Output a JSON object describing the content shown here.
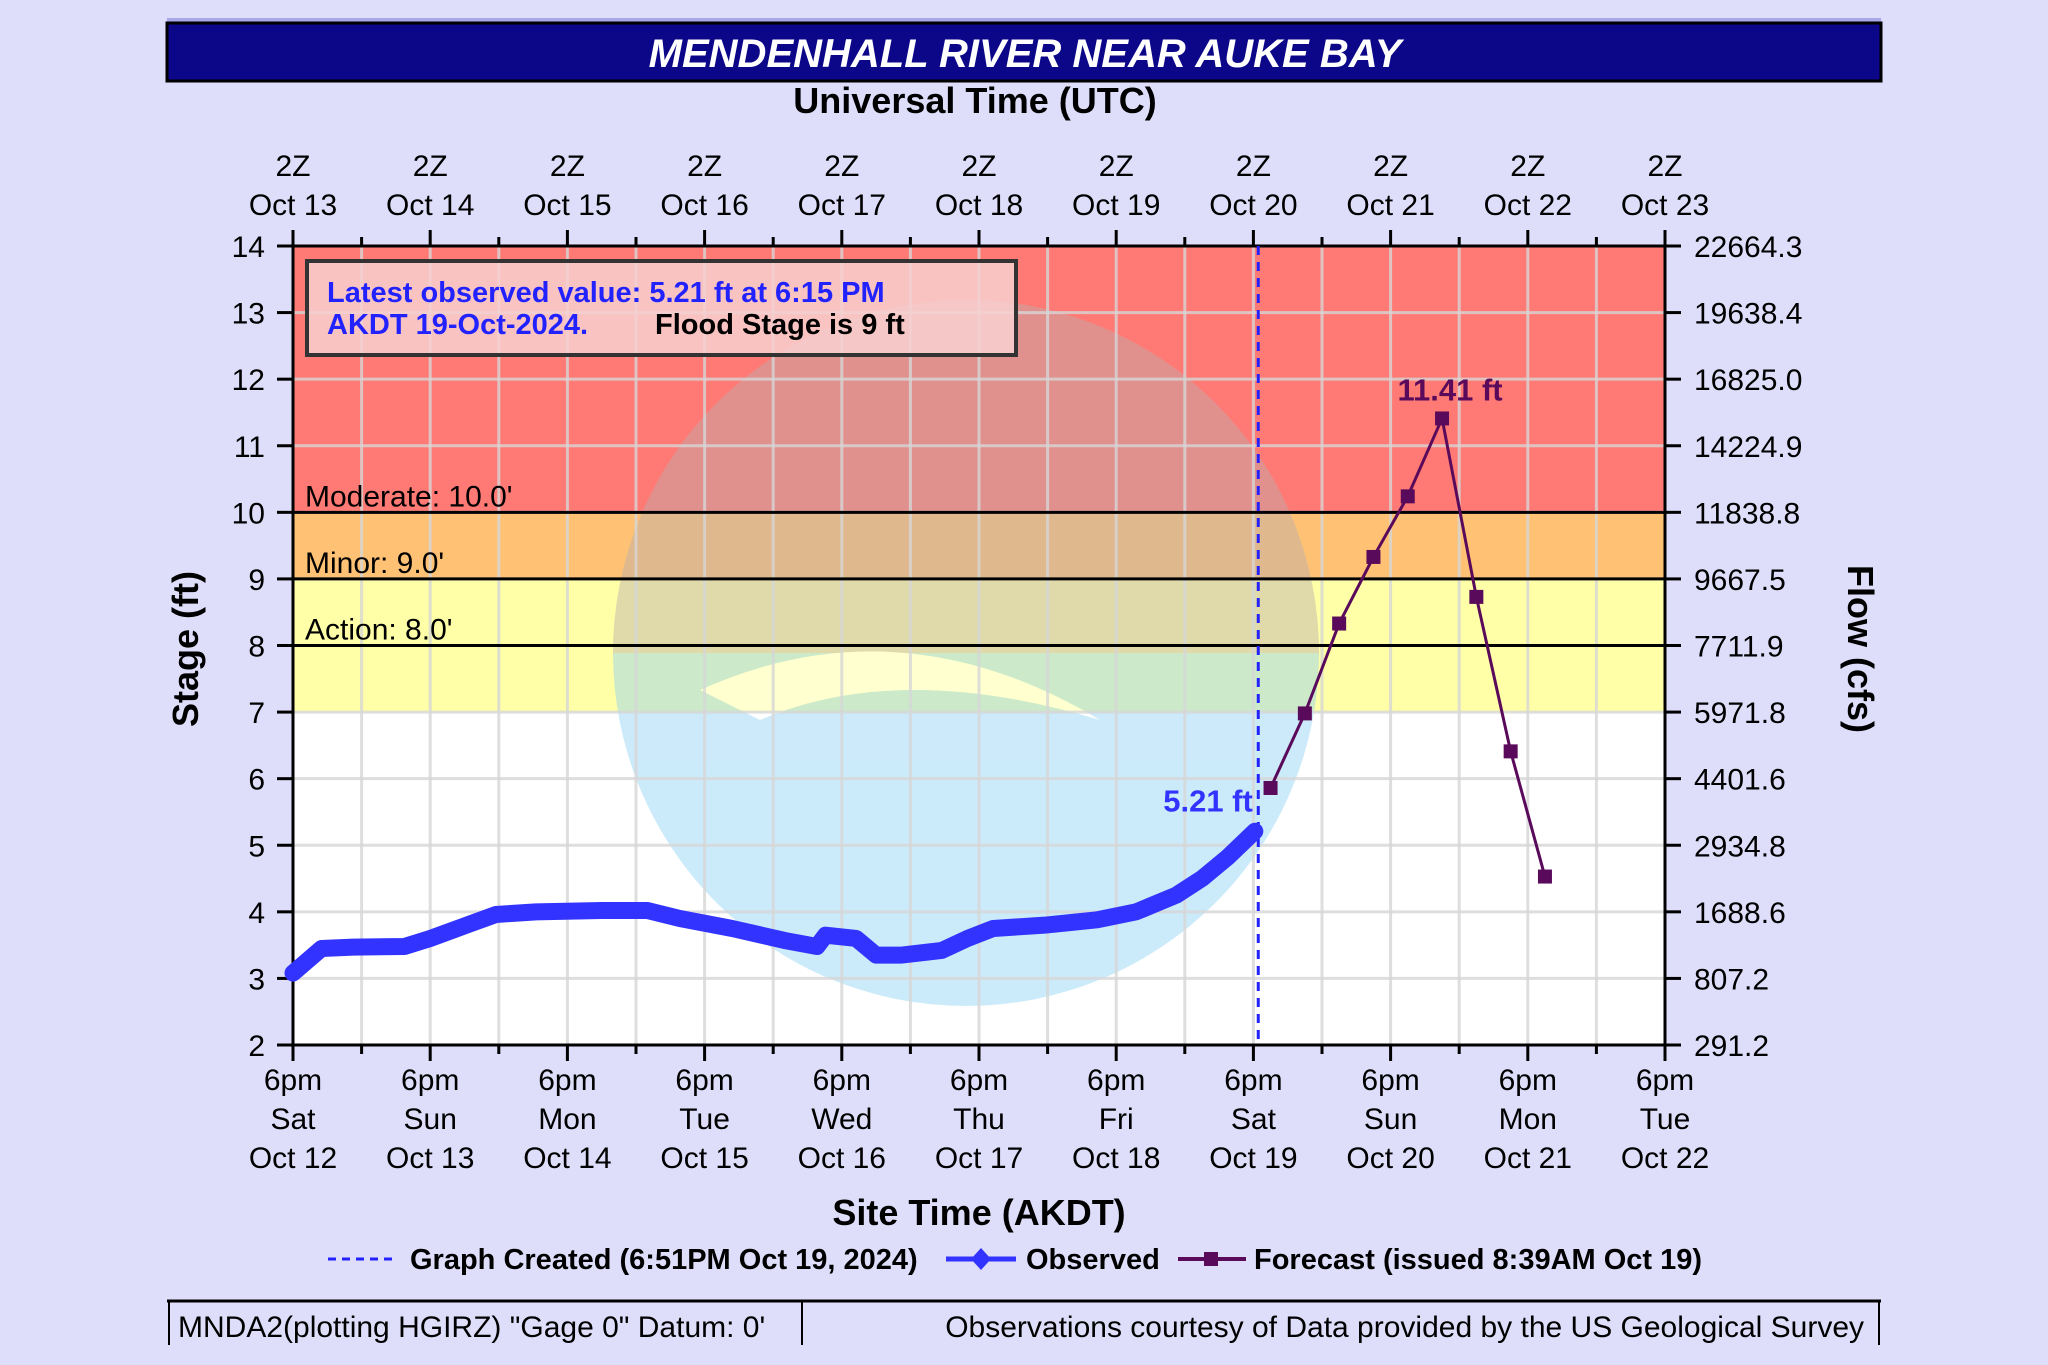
{
  "chart_data": {
    "type": "line",
    "title": "MENDENHALL RIVER NEAR AUKE BAY",
    "top_axis_title": "Universal Time (UTC)",
    "top_tick_labels": [
      [
        "2Z",
        "Oct 13"
      ],
      [
        "2Z",
        "Oct 14"
      ],
      [
        "2Z",
        "Oct 15"
      ],
      [
        "2Z",
        "Oct 16"
      ],
      [
        "2Z",
        "Oct 17"
      ],
      [
        "2Z",
        "Oct 18"
      ],
      [
        "2Z",
        "Oct 19"
      ],
      [
        "2Z",
        "Oct 20"
      ],
      [
        "2Z",
        "Oct 21"
      ],
      [
        "2Z",
        "Oct 22"
      ],
      [
        "2Z",
        "Oct 23"
      ]
    ],
    "xlabel": "Site Time (AKDT)",
    "x_tick_labels": [
      [
        "6pm",
        "Sat",
        "Oct 12"
      ],
      [
        "6pm",
        "Sun",
        "Oct 13"
      ],
      [
        "6pm",
        "Mon",
        "Oct 14"
      ],
      [
        "6pm",
        "Tue",
        "Oct 15"
      ],
      [
        "6pm",
        "Wed",
        "Oct 16"
      ],
      [
        "6pm",
        "Thu",
        "Oct 17"
      ],
      [
        "6pm",
        "Fri",
        "Oct 18"
      ],
      [
        "6pm",
        "Sat",
        "Oct 19"
      ],
      [
        "6pm",
        "Sun",
        "Oct 20"
      ],
      [
        "6pm",
        "Mon",
        "Oct 21"
      ],
      [
        "6pm",
        "Tue",
        "Oct 22"
      ]
    ],
    "xlim": [
      "2024-10-12T18:00",
      "2024-10-22T18:00"
    ],
    "ylabel": "Stage (ft)",
    "ylim": [
      2,
      14
    ],
    "y_ticks": [
      2,
      3,
      4,
      5,
      6,
      7,
      8,
      9,
      10,
      11,
      12,
      13,
      14
    ],
    "y2label": "Flow (cfs)",
    "y2_tick_labels": [
      "291.2",
      "807.2",
      "1688.6",
      "2934.8",
      "4401.6",
      "5971.8",
      "7711.9",
      "9667.5",
      "11838.8",
      "14224.9",
      "16825.0",
      "19638.4",
      "22664.3"
    ],
    "grid": true,
    "thresholds": [
      {
        "label": "Moderate: 10.0'",
        "value": 10,
        "color": "#ff7a74"
      },
      {
        "label": "Minor: 9.0'",
        "value": 9,
        "color": "#ffc274"
      },
      {
        "label": "Action: 8.0'",
        "value": 8,
        "color": "#ffffa8"
      }
    ],
    "above_moderate_color": "#ff7a74",
    "info_box": {
      "line1": "Latest observed value: 5.21 ft at 6:15 PM",
      "line2_blue": "AKDT 19-Oct-2024.",
      "line2_black": "Flood Stage is 9 ft"
    },
    "graph_created_time": "2024-10-19T18:51",
    "series": [
      {
        "name": "Observed",
        "color": "#3333ff",
        "end_label": "5.21 ft",
        "points": [
          [
            "2024-10-12T18:00",
            3.08
          ],
          [
            "2024-10-12T23:00",
            3.45
          ],
          [
            "2024-10-13T04:30",
            3.47
          ],
          [
            "2024-10-13T13:30",
            3.48
          ],
          [
            "2024-10-13T18:00",
            3.6
          ],
          [
            "2024-10-14T01:00",
            3.82
          ],
          [
            "2024-10-14T05:30",
            3.96
          ],
          [
            "2024-10-14T12:30",
            4.0
          ],
          [
            "2024-10-15T00:00",
            4.02
          ],
          [
            "2024-10-15T08:00",
            4.02
          ],
          [
            "2024-10-15T13:40",
            3.9
          ],
          [
            "2024-10-15T22:50",
            3.75
          ],
          [
            "2024-10-16T08:00",
            3.57
          ],
          [
            "2024-10-16T13:40",
            3.48
          ],
          [
            "2024-10-16T15:10",
            3.65
          ],
          [
            "2024-10-16T20:30",
            3.6
          ],
          [
            "2024-10-17T00:00",
            3.35
          ],
          [
            "2024-10-17T04:30",
            3.35
          ],
          [
            "2024-10-17T11:30",
            3.42
          ],
          [
            "2024-10-17T16:00",
            3.6
          ],
          [
            "2024-10-17T20:30",
            3.75
          ],
          [
            "2024-10-18T05:30",
            3.8
          ],
          [
            "2024-10-18T14:40",
            3.88
          ],
          [
            "2024-10-18T21:30",
            4.0
          ],
          [
            "2024-10-19T04:30",
            4.25
          ],
          [
            "2024-10-19T09:00",
            4.5
          ],
          [
            "2024-10-19T13:30",
            4.82
          ],
          [
            "2024-10-19T18:15",
            5.21
          ]
        ]
      },
      {
        "name": "Forecast",
        "color": "#5a0a5a",
        "peak_label": "11.41 ft",
        "points": [
          [
            "2024-10-19T21:00",
            5.86
          ],
          [
            "2024-10-20T03:00",
            6.98
          ],
          [
            "2024-10-20T09:00",
            8.33
          ],
          [
            "2024-10-20T15:00",
            9.33
          ],
          [
            "2024-10-20T21:00",
            10.24
          ],
          [
            "2024-10-21T03:00",
            11.41
          ],
          [
            "2024-10-21T09:00",
            8.73
          ],
          [
            "2024-10-21T15:00",
            6.41
          ],
          [
            "2024-10-21T21:00",
            4.53
          ]
        ]
      }
    ],
    "legend": {
      "placement": "bottom",
      "graph_created": "Graph Created (6:51PM Oct 19, 2024)",
      "observed": "Observed",
      "forecast": "Forecast (issued 8:39AM Oct 19)"
    },
    "footer": {
      "left": "MNDA2(plotting HGIRZ) \"Gage 0\" Datum: 0'",
      "right": "Observations courtesy of Data provided by the US Geological Survey"
    },
    "colors": {
      "title_bar": "#0c0688",
      "panel": "#dedefa",
      "grid": "#d6d6d6"
    }
  }
}
